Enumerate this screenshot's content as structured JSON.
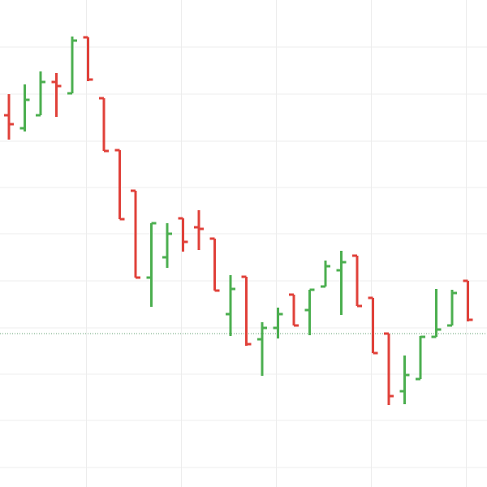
{
  "chart_data": {
    "type": "ohlc",
    "title": "",
    "xlabel": "",
    "ylabel": "",
    "grid": true,
    "ylim": [
      0,
      600
    ],
    "colors": {
      "up": "#4caf50",
      "down": "#e0413a",
      "grid": "#ececec",
      "reference": "#5f9f6f"
    },
    "reference_value": 189,
    "x_gridlines": [
      4.9,
      10.9,
      16.9,
      22.9,
      28.9
    ],
    "y_gridlines": [
      542,
      484,
      426,
      369,
      312,
      254,
      196,
      139,
      82,
      24
    ],
    "bars": [
      {
        "x": 0,
        "open": 458,
        "high": 484,
        "low": 428,
        "close": 447
      },
      {
        "x": 1,
        "open": 442,
        "high": 496,
        "low": 438,
        "close": 477
      },
      {
        "x": 2,
        "open": 458,
        "high": 512,
        "low": 458,
        "close": 499
      },
      {
        "x": 3,
        "open": 499,
        "high": 510,
        "low": 456,
        "close": 494
      },
      {
        "x": 4,
        "open": 485,
        "high": 555,
        "low": 485,
        "close": 550
      },
      {
        "x": 5,
        "open": 554,
        "high": 554,
        "low": 500,
        "close": 502
      },
      {
        "x": 6,
        "open": 479,
        "high": 479,
        "low": 414,
        "close": 414
      },
      {
        "x": 7,
        "open": 415,
        "high": 415,
        "low": 330,
        "close": 330
      },
      {
        "x": 8,
        "open": 365,
        "high": 365,
        "low": 258,
        "close": 258
      },
      {
        "x": 9,
        "open": 258,
        "high": 325,
        "low": 222,
        "close": 325
      },
      {
        "x": 10,
        "open": 283,
        "high": 325,
        "low": 270,
        "close": 312
      },
      {
        "x": 11,
        "open": 331,
        "high": 331,
        "low": 290,
        "close": 302
      },
      {
        "x": 12,
        "open": 320,
        "high": 341,
        "low": 292,
        "close": 318
      },
      {
        "x": 13,
        "open": 306,
        "high": 306,
        "low": 242,
        "close": 242
      },
      {
        "x": 14,
        "open": 213,
        "high": 261,
        "low": 186,
        "close": 244
      },
      {
        "x": 15,
        "open": 259,
        "high": 259,
        "low": 174,
        "close": 176
      },
      {
        "x": 16,
        "open": 182,
        "high": 203,
        "low": 137,
        "close": 196
      },
      {
        "x": 17,
        "open": 196,
        "high": 221,
        "low": 183,
        "close": 213
      },
      {
        "x": 18,
        "open": 237,
        "high": 237,
        "low": 199,
        "close": 199
      },
      {
        "x": 19,
        "open": 218,
        "high": 243,
        "low": 187,
        "close": 243
      },
      {
        "x": 20,
        "open": 247,
        "high": 279,
        "low": 247,
        "close": 272
      },
      {
        "x": 21,
        "open": 267,
        "high": 291,
        "low": 212,
        "close": 277
      },
      {
        "x": 22,
        "open": 285,
        "high": 285,
        "low": 223,
        "close": 223
      },
      {
        "x": 23,
        "open": 233,
        "high": 233,
        "low": 165,
        "close": 165
      },
      {
        "x": 24,
        "open": 189,
        "high": 189,
        "low": 101,
        "close": 112
      },
      {
        "x": 25,
        "open": 118,
        "high": 162,
        "low": 102,
        "close": 138
      },
      {
        "x": 26,
        "open": 133,
        "high": 186,
        "low": 133,
        "close": 185
      },
      {
        "x": 27,
        "open": 185,
        "high": 244,
        "low": 185,
        "close": 194
      },
      {
        "x": 28,
        "open": 199,
        "high": 243,
        "low": 199,
        "close": 239
      },
      {
        "x": 29,
        "open": 254,
        "high": 254,
        "low": 204,
        "close": 206
      }
    ]
  }
}
